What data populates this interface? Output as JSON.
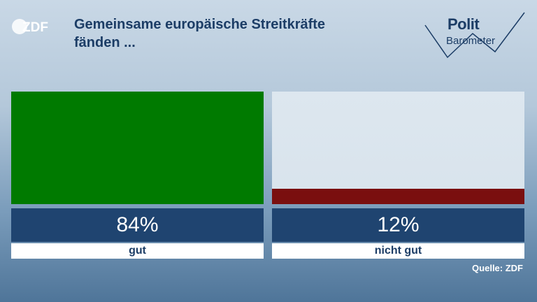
{
  "header": {
    "logo_text": "ZDF",
    "title_line1": "Gemeinsame europäische Streitkräfte",
    "title_line2": "fänden ...",
    "brand_line1": "Polit",
    "brand_line2": "Barometer"
  },
  "chart_data": {
    "type": "bar",
    "title": "Gemeinsame europäische Streitkräfte fänden ...",
    "categories": [
      "gut",
      "nicht gut"
    ],
    "values": [
      84,
      12
    ],
    "value_labels": [
      "84%",
      "12%"
    ],
    "ylim": [
      0,
      84
    ],
    "colors": [
      "#007a00",
      "#7a0f0f"
    ],
    "track_colors": [
      "#007a00",
      "#d8e3ec"
    ]
  },
  "footer": {
    "source": "Quelle: ZDF"
  }
}
